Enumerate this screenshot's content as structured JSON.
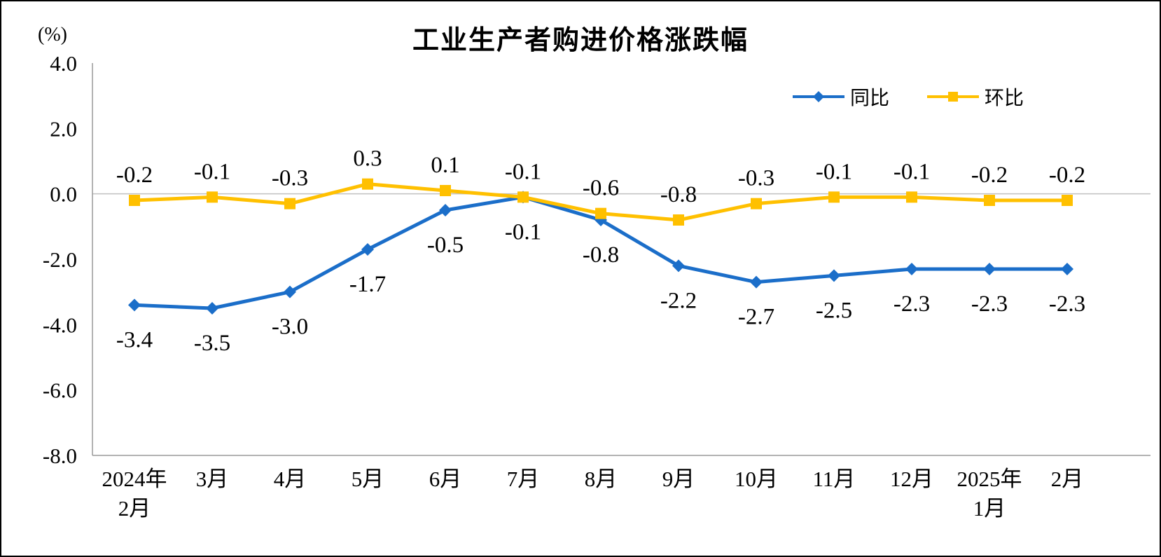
{
  "chart_data": {
    "type": "line",
    "title": "工业生产者购进价格涨跌幅",
    "ylabel": "(%)",
    "xlabel": "",
    "ylim": [
      -8.0,
      4.0
    ],
    "ytick_interval": 2.0,
    "yticks": [
      "4.0",
      "2.0",
      "0.0",
      "-2.0",
      "-4.0",
      "-6.0",
      "-8.0"
    ],
    "grid": false,
    "legend_position": "top-right",
    "categories": [
      [
        "2024年",
        "2月"
      ],
      [
        "3月"
      ],
      [
        "4月"
      ],
      [
        "5月"
      ],
      [
        "6月"
      ],
      [
        "7月"
      ],
      [
        "8月"
      ],
      [
        "9月"
      ],
      [
        "10月"
      ],
      [
        "11月"
      ],
      [
        "12月"
      ],
      [
        "2025年",
        "1月"
      ],
      [
        "2月"
      ]
    ],
    "series": [
      {
        "name": "同比",
        "marker": "diamond",
        "color": "#1B6EC9",
        "values": [
          -3.4,
          -3.5,
          -3.0,
          -1.7,
          -0.5,
          -0.1,
          -0.8,
          -2.2,
          -2.7,
          -2.5,
          -2.3,
          -2.3,
          -2.3
        ]
      },
      {
        "name": "环比",
        "marker": "square",
        "color": "#FFC000",
        "values": [
          -0.2,
          -0.1,
          -0.3,
          0.3,
          0.1,
          -0.1,
          -0.6,
          -0.8,
          -0.3,
          -0.1,
          -0.1,
          -0.2,
          -0.2
        ]
      }
    ]
  }
}
